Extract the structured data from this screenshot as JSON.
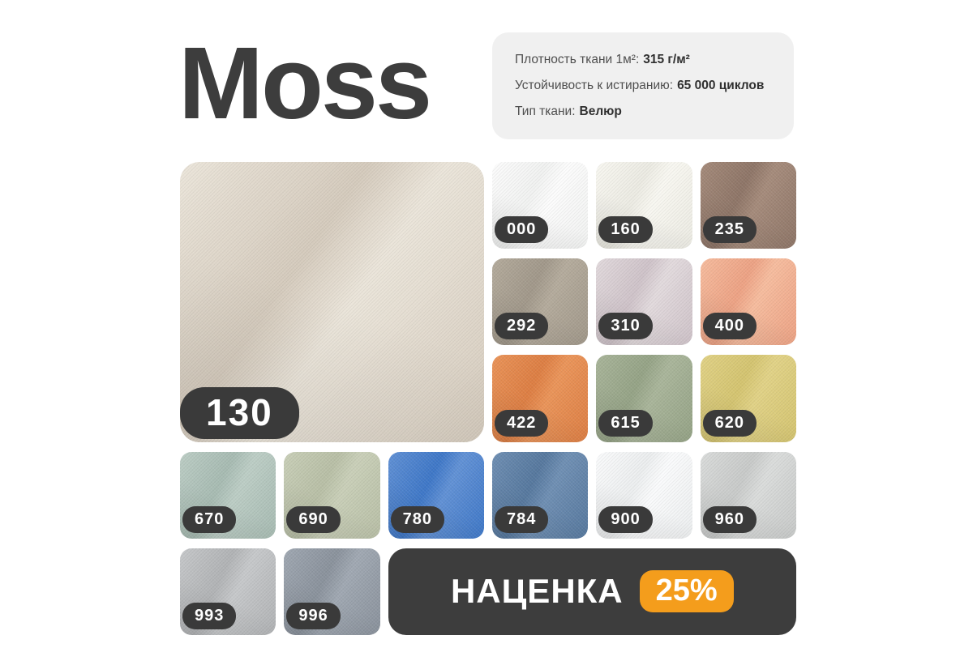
{
  "page": {
    "title": "Moss"
  },
  "specs": {
    "rows": [
      {
        "label": "Плотность ткани 1м²:",
        "value": "315 г/м²"
      },
      {
        "label": "Устойчивость к истиранию:",
        "value": "65 000 циклов"
      },
      {
        "label": "Тип ткани:",
        "value": "Велюр"
      }
    ]
  },
  "main_swatch": {
    "code": "130",
    "color": "#d5cbbd",
    "light": "#ebe5da"
  },
  "swatches": [
    {
      "code": "000",
      "color": "#f1f2f1",
      "light": "#fcfcfc"
    },
    {
      "code": "160",
      "color": "#ecebe3",
      "light": "#f8f7f1"
    },
    {
      "code": "235",
      "color": "#8e7567",
      "light": "#a58b7b"
    },
    {
      "code": "292",
      "color": "#a1988a",
      "light": "#b4ab9c"
    },
    {
      "code": "310",
      "color": "#cfc3c9",
      "light": "#e2dadd"
    },
    {
      "code": "400",
      "color": "#eda284",
      "light": "#f6bc9e"
    },
    {
      "code": "422",
      "color": "#dd7e43",
      "light": "#ea9459"
    },
    {
      "code": "615",
      "color": "#95a386",
      "light": "#a9b59a"
    },
    {
      "code": "620",
      "color": "#d4c470",
      "light": "#e1d286"
    },
    {
      "code": "670",
      "color": "#a7bbb2",
      "light": "#bccdc5"
    },
    {
      "code": "690",
      "color": "#b8bfa6",
      "light": "#c9cfb8"
    },
    {
      "code": "780",
      "color": "#3e77c7",
      "light": "#6191d5"
    },
    {
      "code": "784",
      "color": "#56789e",
      "light": "#6f8fb3"
    },
    {
      "code": "900",
      "color": "#eceeef",
      "light": "#fafbfc"
    },
    {
      "code": "960",
      "color": "#c8cac9",
      "light": "#dadcdb"
    },
    {
      "code": "993",
      "color": "#b1b3b5",
      "light": "#c6c8ca"
    },
    {
      "code": "996",
      "color": "#8a929c",
      "light": "#a0a8b2"
    }
  ],
  "banner": {
    "label": "НАЦЕНКА",
    "value": "25%",
    "accent": "#f49d1c",
    "bg": "#3d3d3d"
  }
}
